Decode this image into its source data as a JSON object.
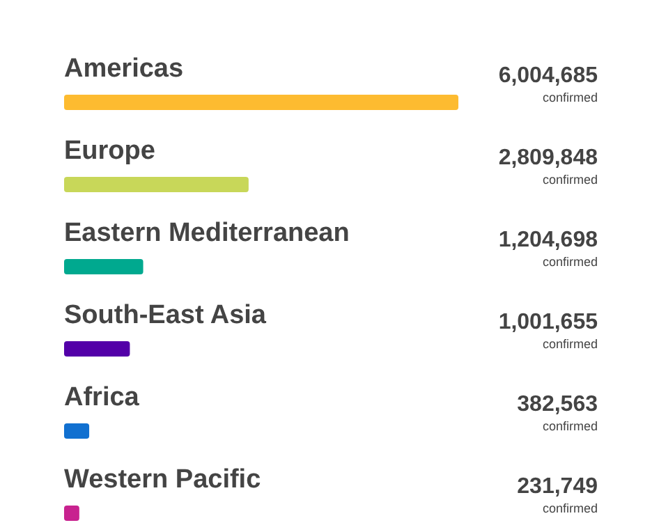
{
  "chart_data": {
    "type": "bar",
    "orientation": "horizontal",
    "categories": [
      "Americas",
      "Europe",
      "Eastern Mediterranean",
      "South-East Asia",
      "Africa",
      "Western Pacific"
    ],
    "values": [
      6004685,
      2809848,
      1204698,
      1001655,
      382563,
      231749
    ],
    "value_labels": [
      "6,004,685",
      "2,809,848",
      "1,204,698",
      "1,001,655",
      "382,563",
      "231,749"
    ],
    "colors": [
      "#fdbb30",
      "#c8d759",
      "#00a98f",
      "#5300a8",
      "#1170d0",
      "#c8228f"
    ],
    "annotations": [
      "confirmed",
      "confirmed",
      "confirmed",
      "confirmed",
      "confirmed",
      "confirmed"
    ]
  }
}
